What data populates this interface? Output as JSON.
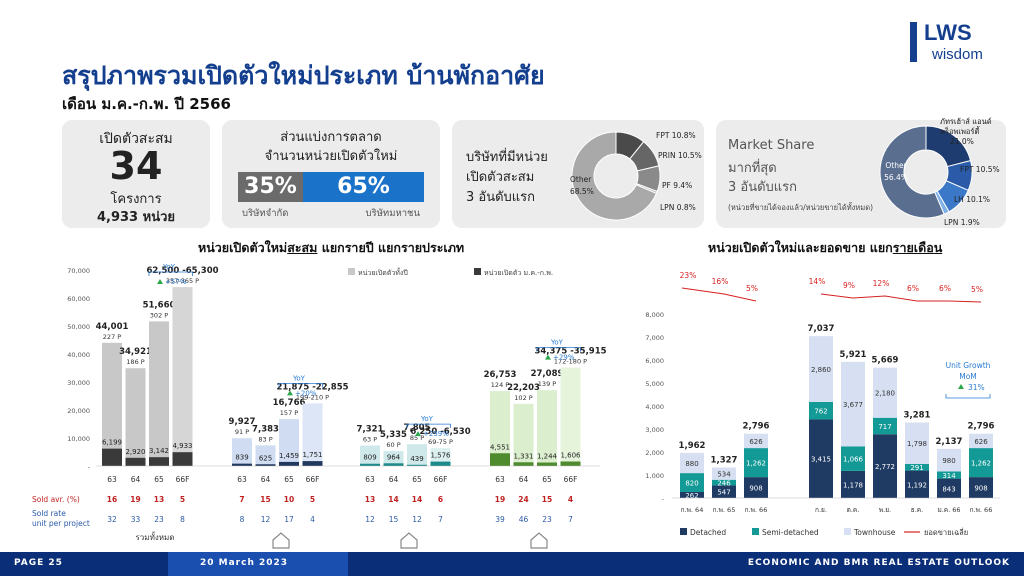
{
  "header": {
    "title": "สรุปภาพรวมเปิดตัวใหม่ประเภท บ้านพักอาศัย",
    "subtitle": "เดือน ม.ค.-ก.พ. ปี 2566",
    "logo_line1": "LWS",
    "logo_line2": "wisdom"
  },
  "kpi": {
    "label": "เปิดตัวสะสม",
    "value": "34",
    "unit": "โครงการ",
    "units_total": "4,933 หน่วย"
  },
  "market_share_card": {
    "title_line1": "ส่วนแบ่งการตลาด",
    "title_line2": "จำนวนหน่วยเปิดตัวใหม่",
    "left_pct": "35%",
    "left_label": "บริษัทจำกัด",
    "right_pct": "65%",
    "right_label": "บริษัทมหาชน",
    "left_color": "#6b6b6b",
    "right_color": "#1a73c8"
  },
  "top3_card": {
    "title_line1": "บริษัทที่มีหน่วย",
    "title_line2": "เปิดตัวสะสม",
    "title_line3": "3 อันดับแรก",
    "slices": [
      {
        "name": "FPT",
        "label": "FPT 10.8%",
        "value": 10.8,
        "color": "#4a4a4a"
      },
      {
        "name": "PRIN",
        "label": "PRIN 10.5%",
        "value": 10.5,
        "color": "#666666"
      },
      {
        "name": "PF",
        "label": "PF 9.4%",
        "value": 9.4,
        "color": "#8a8a8a"
      },
      {
        "name": "LPN",
        "label": "LPN 0.8%",
        "value": 0.8,
        "color": "#bdbdbd"
      },
      {
        "name": "Other",
        "label": "Other",
        "label2": "68.5%",
        "value": 68.5,
        "color": "#a9a9a9"
      }
    ]
  },
  "ms_card": {
    "title_line1": "Market Share",
    "title_line2": "มากที่สุด",
    "title_line3": "3 อันดับแรก",
    "note": "(หน่วยที่ขายได้จองแล้ว/หน่วยขายได้ทั้งหมด)",
    "slices": [
      {
        "name": "ภัทรเฮ้าส์ แอนด์ พร็อพเพอร์ตี้",
        "label": "ภัทรเฮ้าส์ แอนด์",
        "label2": "พร็อพเพอร์ตี้",
        "label3": "21.0%",
        "value": 21.0,
        "color": "#1e3c70"
      },
      {
        "name": "FPT",
        "label": "FPT 10.5%",
        "value": 10.5,
        "color": "#2a5aa8"
      },
      {
        "name": "LH",
        "label": "LH 10.1%",
        "value": 10.1,
        "color": "#3c78c8"
      },
      {
        "name": "LPN",
        "label": "LPN 1.9%",
        "value": 1.9,
        "color": "#7fb0e8"
      },
      {
        "name": "Other",
        "label": "Other",
        "label2": "56.4%",
        "value": 56.4,
        "color": "#5a6f8f"
      }
    ]
  },
  "chart_left": {
    "title_pre": "หน่วยเปิดตัวใหม่",
    "title_u": "สะสม",
    "title_post": " แยกรายปี แยกรายประเภท",
    "legend_total": "หน่วยเปิดตัวทั้งปี",
    "legend_ytd": "หน่วยเปิดตัว ม.ค.-ก.พ.",
    "total_color": "#c8c8c8",
    "ytd_color": "#3a3a3a",
    "row_labels": [
      "Sold avr. (%)",
      "Sold rate",
      "unit per project"
    ],
    "row_note": "รวมทั้งหมด",
    "y_ticks": [
      "70,000",
      "60,000",
      "50,000",
      "40,000",
      "30,000",
      "20,000",
      "10,000",
      "-"
    ]
  },
  "chart_data": [
    {
      "type": "bar",
      "title": "หน่วยเปิดตัวใหม่สะสม แยกรายปี แยกรายประเภท",
      "ylim": [
        0,
        70000
      ],
      "groups": [
        {
          "name": "รวมทั้งหมด",
          "categories": [
            "63",
            "64",
            "65",
            "66F"
          ],
          "total": [
            44001,
            34921,
            51660,
            63900
          ],
          "total_labels": [
            "44,001",
            "34,921",
            "51,660",
            "62,500 -65,300"
          ],
          "project_labels": [
            "227 P",
            "186 P",
            "302 P",
            "357-365 P"
          ],
          "ytd": [
            6199,
            2920,
            3142,
            4933
          ],
          "ytd_labels": [
            "6,199",
            "2,920",
            "3,142",
            "4,933"
          ],
          "yoy": "+57%",
          "sold_avr": [
            "16",
            "19",
            "13",
            "5"
          ],
          "sold_rate": [
            "32",
            "33",
            "23",
            "8"
          ],
          "total_color": "#c8c8c8",
          "ytd_color": "#3a3a3a",
          "forecast_color": "#d6d6d6"
        },
        {
          "name": "บ้านเดี่ยว",
          "categories": [
            "63",
            "64",
            "65",
            "66F"
          ],
          "total": [
            9927,
            7383,
            16766,
            22365
          ],
          "total_labels": [
            "9,927",
            "7,383",
            "16,766",
            "21,875 -22,855"
          ],
          "project_labels": [
            "91 P",
            "83 P",
            "157 P",
            "199-210 P"
          ],
          "ytd": [
            839,
            625,
            1459,
            1751
          ],
          "ytd_labels": [
            "839",
            "625",
            "1,459",
            "1,751"
          ],
          "yoy": "+20%",
          "sold_avr": [
            "7",
            "15",
            "10",
            "5"
          ],
          "sold_rate": [
            "8",
            "12",
            "17",
            "4"
          ],
          "total_color": "#d0dcf2",
          "ytd_color": "#22385f",
          "forecast_color": "#dde6f6"
        },
        {
          "name": "บ้านแฝด",
          "categories": [
            "63",
            "64",
            "65",
            "66F"
          ],
          "total": [
            7321,
            5335,
            7805,
            6390
          ],
          "total_labels": [
            "7,321",
            "5,335",
            "7,805",
            "6,250 -6,530"
          ],
          "project_labels": [
            "63 P",
            "60 P",
            "85 P",
            "69-75 P"
          ],
          "ytd": [
            809,
            964,
            439,
            1576
          ],
          "ytd_labels": [
            "809",
            "964",
            "439",
            "1,576"
          ],
          "yoy": "+259%",
          "sold_avr": [
            "13",
            "14",
            "14",
            "6"
          ],
          "sold_rate": [
            "12",
            "15",
            "12",
            "7"
          ],
          "total_color": "#cfe9ea",
          "ytd_color": "#1b8a8a",
          "forecast_color": "#dcf0f0"
        },
        {
          "name": "ทาวน์เฮาส์",
          "categories": [
            "63",
            "64",
            "65",
            "66F"
          ],
          "total": [
            26753,
            22203,
            27089,
            35145
          ],
          "total_labels": [
            "26,753",
            "22,203",
            "27,089",
            "34,375 -35,915"
          ],
          "project_labels": [
            "124 P",
            "102 P",
            "139 P",
            "172-180 P"
          ],
          "ytd": [
            4551,
            1331,
            1244,
            1606
          ],
          "ytd_labels": [
            "4,551",
            "1,331",
            "1,244",
            "1,606"
          ],
          "yoy": "+29%",
          "sold_avr": [
            "19",
            "24",
            "15",
            "4"
          ],
          "sold_rate": [
            "39",
            "46",
            "23",
            "7"
          ],
          "total_color": "#dbefcf",
          "ytd_color": "#4e8a2e",
          "forecast_color": "#e6f4dc"
        }
      ]
    },
    {
      "type": "bar",
      "title": "หน่วยเปิดตัวใหม่และยอดขาย แยกรายเดือน",
      "stacked": true,
      "ylim": [
        0,
        8000
      ],
      "y_ticks": [
        "8,000",
        "7,000",
        "6,000",
        "5,000",
        "4,000",
        "3,000",
        "2,000",
        "1,000",
        "-"
      ],
      "categories": [
        "ก.พ. 64",
        "ก.พ. 65",
        "ก.พ. 66",
        "ก.ย.",
        "ต.ค.",
        "พ.ย.",
        "ธ.ค.",
        "ม.ค. 66",
        "ก.พ. 66"
      ],
      "series": [
        {
          "name": "Detached",
          "values": [
            262,
            547,
            908,
            3415,
            1178,
            2772,
            1192,
            843,
            908
          ],
          "labels": [
            "262",
            "547",
            "908",
            "3,415",
            "1,178",
            "2,772",
            "1,192",
            "843",
            "908"
          ],
          "color": "#1f3a63"
        },
        {
          "name": "Semi-detached",
          "values": [
            820,
            246,
            1262,
            762,
            1066,
            717,
            291,
            314,
            1262
          ],
          "labels": [
            "820",
            "246",
            "1,262",
            "762",
            "1,066",
            "717",
            "291",
            "314",
            "1,262"
          ],
          "color": "#139a96"
        },
        {
          "name": "Townhouse",
          "values": [
            880,
            534,
            626,
            2860,
            3677,
            2180,
            1798,
            980,
            626
          ],
          "labels": [
            "880",
            "534",
            "626",
            "2,860",
            "3,677",
            "2,180",
            "1,798",
            "980",
            "626"
          ],
          "color": "#d6e0f2"
        }
      ],
      "totals": [
        "1,962",
        "1,327",
        "2,796",
        "7,037",
        "5,921",
        "5,669",
        "3,281",
        "2,137",
        "2,796"
      ],
      "sold_avg_series": {
        "name": "ยอดขายเฉลี่ย",
        "labels": [
          "23%",
          "16%",
          "5%",
          "14%",
          "9%",
          "12%",
          "6%",
          "6%",
          "5%"
        ],
        "color": "#d62020"
      },
      "annotation": {
        "line1": "Unit Growth",
        "line2": "MoM",
        "value": "31%"
      }
    }
  ],
  "chart_right": {
    "title_pre": "หน่วยเปิดตัวใหม่และยอดขาย แยก",
    "title_u": "รายเดือน",
    "legend": [
      "Detached",
      "Semi-detached",
      "Townhouse",
      "ยอดขายเฉลี่ย"
    ]
  },
  "footer": {
    "page": "PAGE 25",
    "date": "20 March 2023",
    "right": "ECONOMIC AND BMR REAL ESTATE OUTLOOK"
  }
}
